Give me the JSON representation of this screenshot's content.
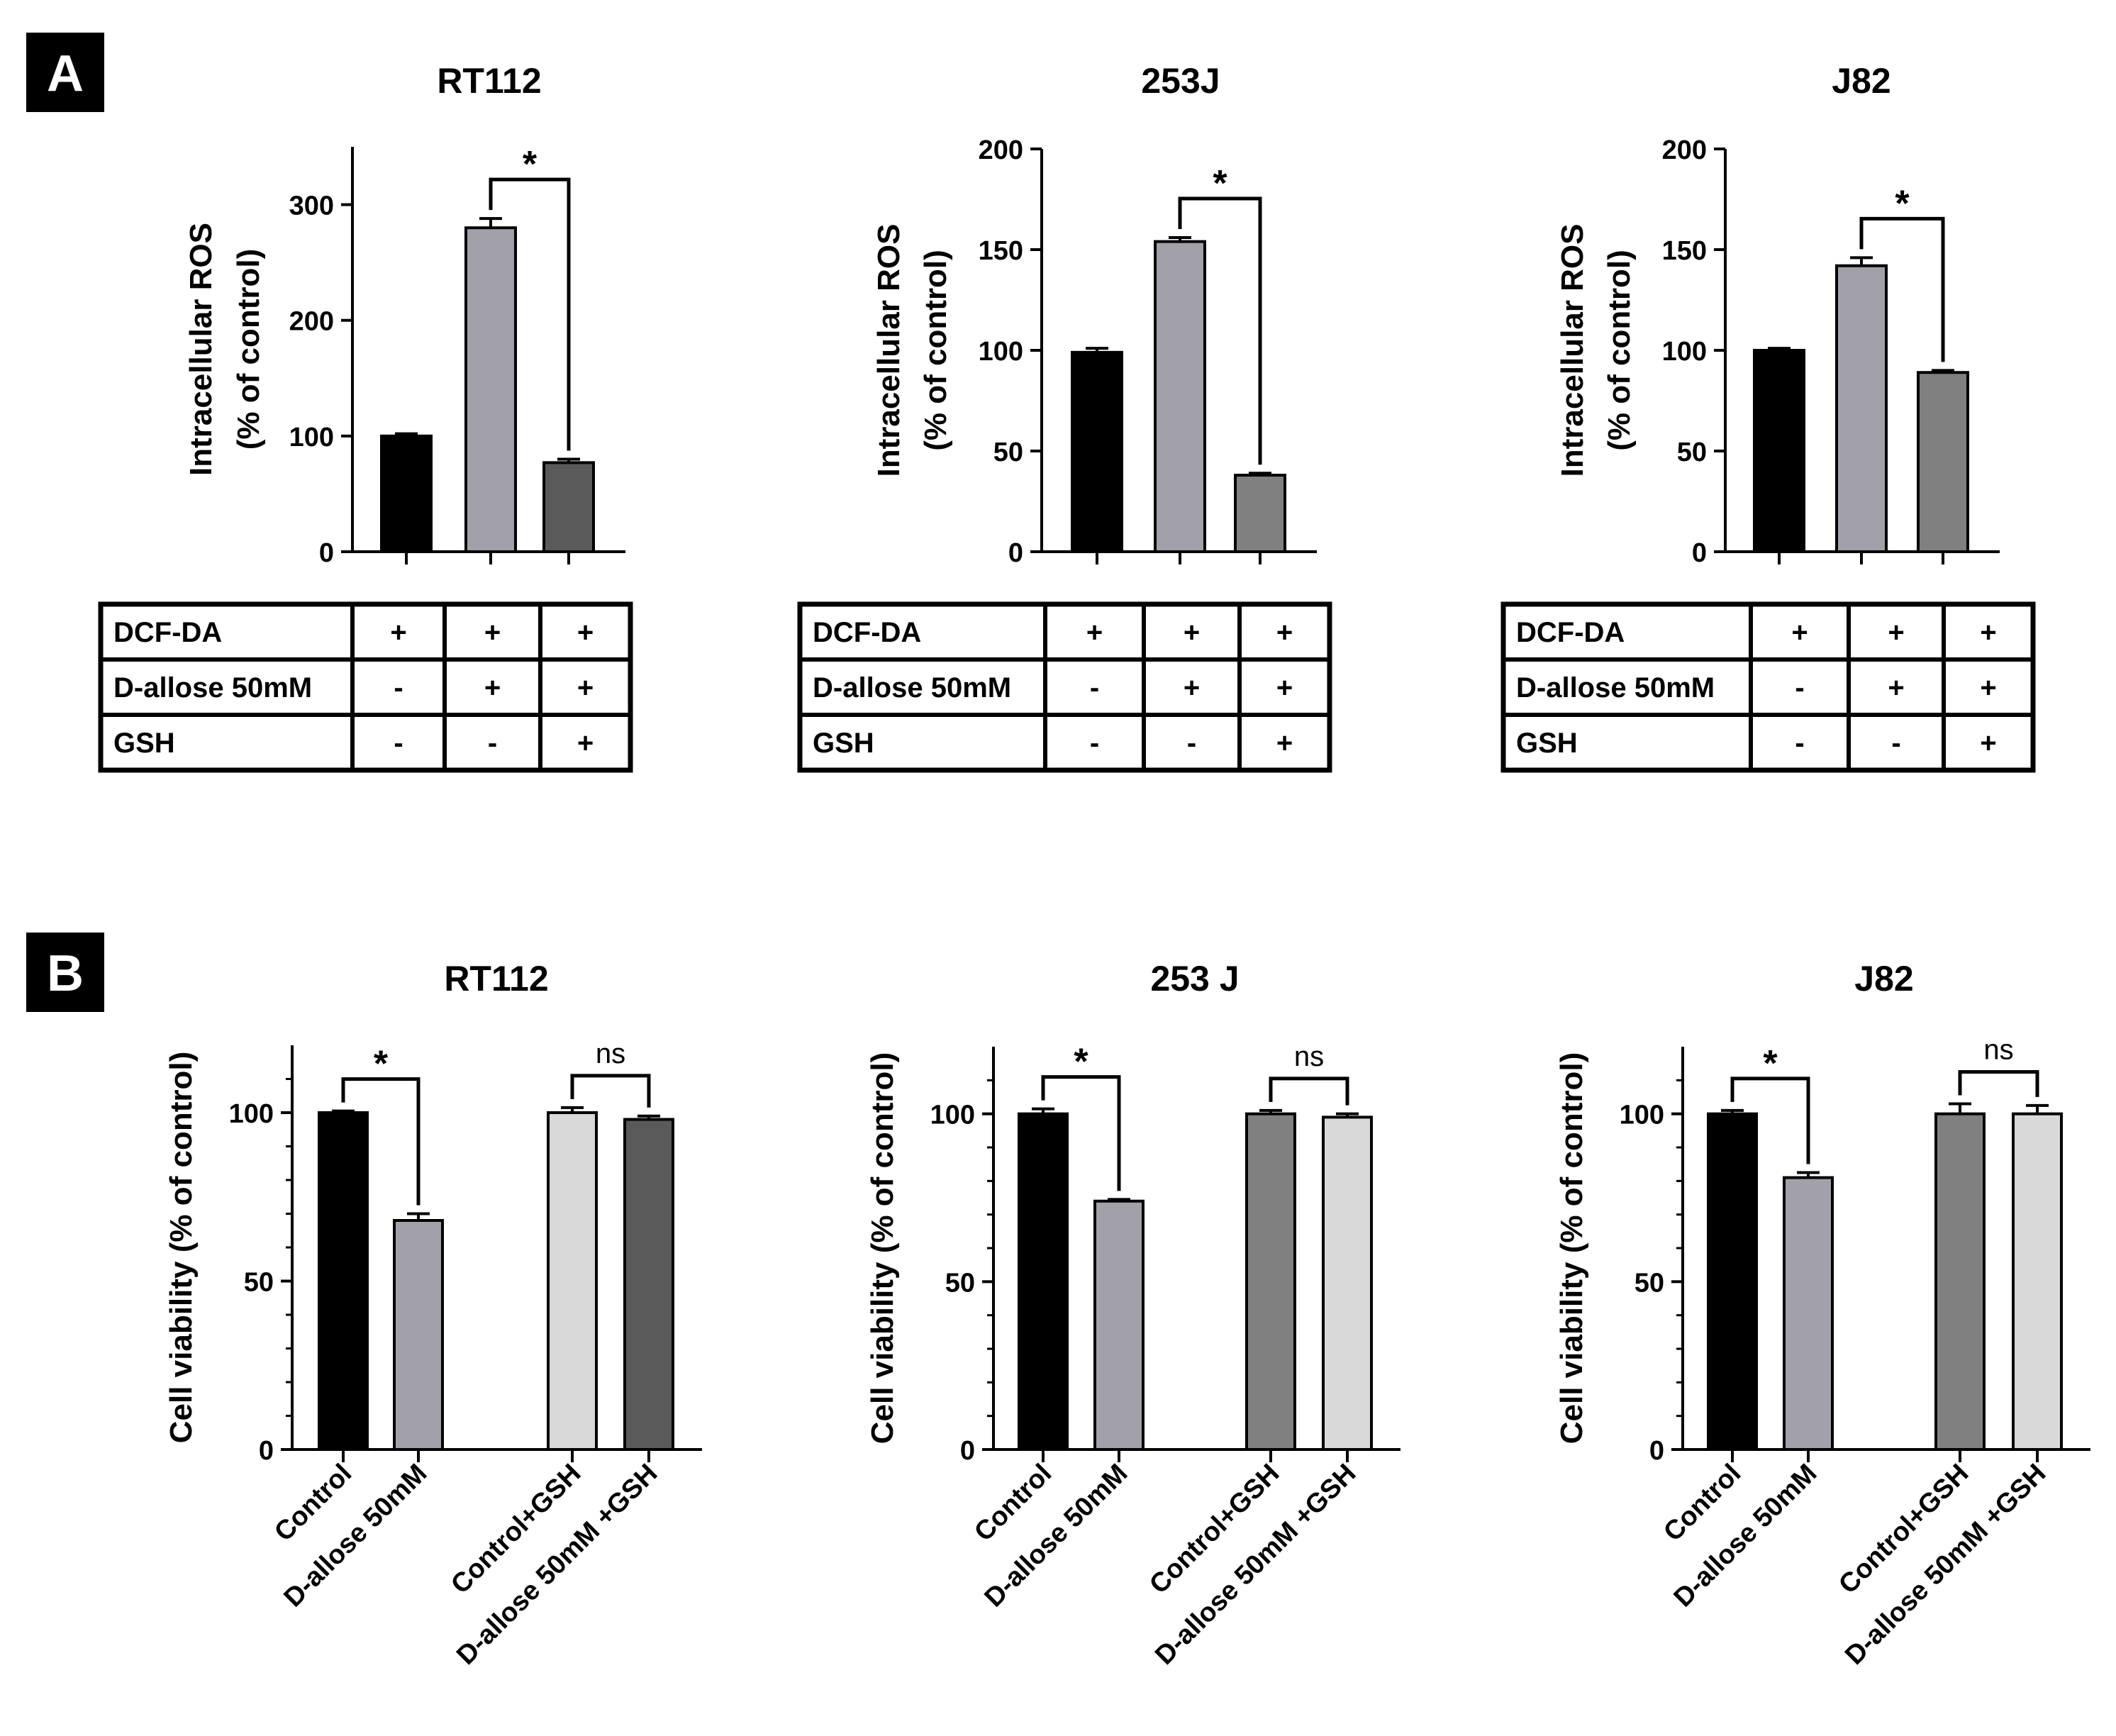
{
  "panels": [
    {
      "label": "A",
      "id": "panel-a"
    },
    {
      "label": "B",
      "id": "panel-b"
    }
  ],
  "colors": {
    "black": "#000000",
    "light_gray": "#a2a0a8",
    "dark_gray": "#5a5a5a",
    "mid_gray": "#808080",
    "pale_gray": "#d9d9d9"
  },
  "chart_data": [
    {
      "panel": "A",
      "type": "bar",
      "title": "RT112",
      "ylabel": "Intracellular ROS (% of control)",
      "ylabel_lines": [
        "Intracellular ROS",
        "(% of control)"
      ],
      "ylim": [
        0,
        350
      ],
      "yticks": [
        0,
        100,
        200,
        300
      ],
      "values": [
        100,
        280,
        77
      ],
      "errors": [
        2,
        8,
        3
      ],
      "colors": [
        "#000000",
        "#a2a0a8",
        "#5a5a5a"
      ],
      "brackets": [
        {
          "from": 1,
          "to": 2,
          "label": "*"
        }
      ],
      "table": {
        "rows": [
          {
            "label": "DCF-DA",
            "cells": [
              "+",
              "+",
              "+"
            ]
          },
          {
            "label": "D-allose 50mM",
            "cells": [
              "-",
              "+",
              "+"
            ]
          },
          {
            "label": "GSH",
            "cells": [
              "-",
              "-",
              "+"
            ]
          }
        ]
      }
    },
    {
      "panel": "A",
      "type": "bar",
      "title": "253J",
      "ylabel": "Intracellular ROS (% of control)",
      "ylabel_lines": [
        "Intracellular ROS",
        "(% of control)"
      ],
      "ylim": [
        0,
        200
      ],
      "yticks": [
        0,
        50,
        100,
        150,
        200
      ],
      "values": [
        99,
        154,
        38
      ],
      "errors": [
        2,
        2,
        1
      ],
      "colors": [
        "#000000",
        "#a2a0a8",
        "#808080"
      ],
      "brackets": [
        {
          "from": 1,
          "to": 2,
          "label": "*"
        }
      ],
      "table": {
        "rows": [
          {
            "label": "DCF-DA",
            "cells": [
              "+",
              "+",
              "+"
            ]
          },
          {
            "label": "D-allose 50mM",
            "cells": [
              "-",
              "+",
              "+"
            ]
          },
          {
            "label": "GSH",
            "cells": [
              "-",
              "-",
              "+"
            ]
          }
        ]
      }
    },
    {
      "panel": "A",
      "type": "bar",
      "title": "J82",
      "ylabel": "Intracellular ROS (% of control)",
      "ylabel_lines": [
        "Intracellular ROS",
        "(% of control)"
      ],
      "ylim": [
        0,
        200
      ],
      "yticks": [
        0,
        50,
        100,
        150,
        200
      ],
      "values": [
        100,
        142,
        89
      ],
      "errors": [
        1,
        4,
        1
      ],
      "colors": [
        "#000000",
        "#a2a0a8",
        "#808080"
      ],
      "brackets": [
        {
          "from": 1,
          "to": 2,
          "label": "*"
        }
      ],
      "table": {
        "rows": [
          {
            "label": "DCF-DA",
            "cells": [
              "+",
              "+",
              "+"
            ]
          },
          {
            "label": "D-allose 50mM",
            "cells": [
              "-",
              "+",
              "+"
            ]
          },
          {
            "label": "GSH",
            "cells": [
              "-",
              "-",
              "+"
            ]
          }
        ]
      }
    },
    {
      "panel": "B",
      "type": "bar",
      "title": "RT112",
      "ylabel": "Cell viability (% of control)",
      "ylim": [
        0,
        120
      ],
      "yticks": [
        0,
        50,
        100
      ],
      "categories": [
        "Control",
        "D-allose 50mM",
        "Control+GSH",
        "D-allose 50mM +GSH"
      ],
      "values": [
        100,
        68,
        100,
        98
      ],
      "errors": [
        0.5,
        2,
        1.5,
        1
      ],
      "colors": [
        "#000000",
        "#a2a0a8",
        "#d9d9d9",
        "#5a5a5a"
      ],
      "brackets": [
        {
          "from": 0,
          "to": 1,
          "label": "*"
        },
        {
          "from": 2,
          "to": 3,
          "label": "ns"
        }
      ]
    },
    {
      "panel": "B",
      "type": "bar",
      "title": "253 J",
      "ylabel": "Cell viability (% of control)",
      "ylim": [
        0,
        120
      ],
      "yticks": [
        0,
        50,
        100
      ],
      "categories": [
        "Control",
        "D-allose 50mM",
        "Control+GSH",
        "D-allose 50mM +GSH"
      ],
      "values": [
        100,
        74,
        100,
        99
      ],
      "errors": [
        1.5,
        0.5,
        1,
        1
      ],
      "colors": [
        "#000000",
        "#a2a0a8",
        "#808080",
        "#d9d9d9"
      ],
      "brackets": [
        {
          "from": 0,
          "to": 1,
          "label": "*"
        },
        {
          "from": 2,
          "to": 3,
          "label": "ns"
        }
      ]
    },
    {
      "panel": "B",
      "type": "bar",
      "title": "J82",
      "ylabel": "Cell viability (% of control)",
      "ylim": [
        0,
        120
      ],
      "yticks": [
        0,
        50,
        100
      ],
      "categories": [
        "Control",
        "D-allose 50mM",
        "Control+GSH",
        "D-allose 50mM +GSH"
      ],
      "values": [
        100,
        81,
        100,
        100
      ],
      "errors": [
        1,
        1.5,
        3,
        2.5
      ],
      "colors": [
        "#000000",
        "#a2a0a8",
        "#808080",
        "#d9d9d9"
      ],
      "brackets": [
        {
          "from": 0,
          "to": 1,
          "label": "*"
        },
        {
          "from": 2,
          "to": 3,
          "label": "ns"
        }
      ]
    }
  ]
}
